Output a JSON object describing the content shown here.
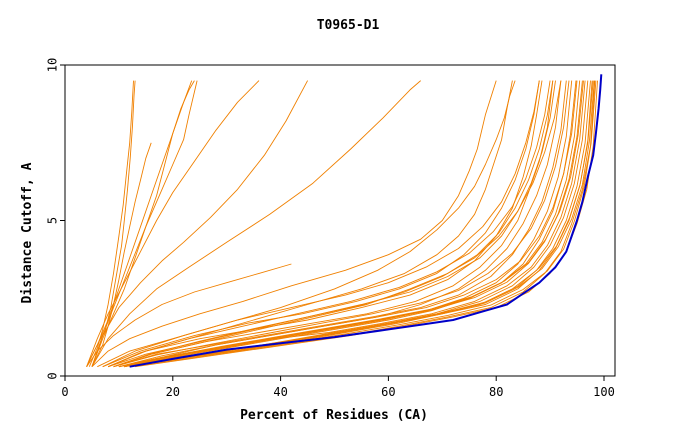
{
  "chart_data": {
    "type": "line",
    "title": "T0965-D1",
    "xlabel": "Percent of Residues (CA)",
    "ylabel": "Distance Cutoff, A",
    "xlim": [
      0,
      100
    ],
    "ylim": [
      0,
      10
    ],
    "xticks": [
      "0",
      "20",
      "40",
      "60",
      "80",
      "100"
    ],
    "yticks": [
      "0",
      "5",
      "10"
    ],
    "grid": false,
    "colors": {
      "models": "#f08000",
      "best": "#0000c8",
      "frame": "#000000"
    },
    "best_curve": {
      "x": [
        12,
        20,
        30,
        40,
        50,
        60,
        66,
        72,
        78,
        82,
        85,
        88,
        91,
        93,
        94,
        95,
        96,
        97,
        98,
        98.5,
        99,
        99.3,
        99.5
      ],
      "y": [
        0.3,
        0.55,
        0.85,
        1.05,
        1.25,
        1.5,
        1.65,
        1.8,
        2.1,
        2.3,
        2.65,
        3.0,
        3.5,
        4.0,
        4.5,
        5.0,
        5.6,
        6.4,
        7.1,
        7.8,
        8.6,
        9.2,
        9.7
      ]
    },
    "series": [
      {
        "x": [
          4,
          6,
          7.5,
          8.5,
          9.5,
          10.5,
          11,
          11.6,
          12.1,
          12.5,
          12.8,
          13
        ],
        "y": [
          0.3,
          1,
          1.5,
          2.2,
          3.2,
          4.2,
          5,
          6,
          7,
          8,
          9,
          9.5
        ]
      },
      {
        "x": [
          4.5,
          6,
          7,
          8,
          9,
          10,
          10.8,
          11.4,
          12,
          12.4,
          12.7
        ],
        "y": [
          0.3,
          0.9,
          1.5,
          2.3,
          3.3,
          4.5,
          5.5,
          6.5,
          7.5,
          8.5,
          9.5
        ]
      },
      {
        "x": [
          5,
          7,
          8,
          9,
          10,
          11,
          12,
          13,
          14,
          15,
          16
        ],
        "y": [
          0.3,
          1,
          1.6,
          2.3,
          3.1,
          4,
          4.8,
          5.6,
          6.3,
          7,
          7.5
        ]
      },
      {
        "x": [
          5,
          7,
          9,
          11,
          13,
          15,
          17,
          18.5,
          20,
          21.5,
          23,
          24
        ],
        "y": [
          0.3,
          1.2,
          2,
          2.8,
          3.8,
          4.8,
          5.8,
          6.8,
          7.8,
          8.6,
          9.2,
          9.5
        ]
      },
      {
        "x": [
          4,
          6,
          8,
          10,
          12,
          14,
          16,
          18,
          20,
          22,
          23.5
        ],
        "y": [
          0.3,
          1,
          1.8,
          2.8,
          3.8,
          4.8,
          5.8,
          6.8,
          7.8,
          8.8,
          9.5
        ]
      },
      {
        "x": [
          5,
          7,
          9,
          12,
          15,
          18,
          20,
          22,
          23,
          24.5
        ],
        "y": [
          0.3,
          1.3,
          2.2,
          3.5,
          4.8,
          6,
          6.8,
          7.6,
          8.4,
          9.5
        ]
      },
      {
        "x": [
          4,
          6,
          8,
          11,
          14,
          17,
          20,
          24,
          28,
          32,
          36
        ],
        "y": [
          0.3,
          1.2,
          2,
          3,
          4,
          5,
          5.9,
          6.9,
          7.9,
          8.8,
          9.5
        ]
      },
      {
        "x": [
          5,
          7,
          10,
          14,
          18,
          22,
          27,
          32,
          37,
          41,
          45
        ],
        "y": [
          0.3,
          1.3,
          2.2,
          3,
          3.7,
          4.3,
          5.1,
          6,
          7.1,
          8.2,
          9.5
        ]
      },
      {
        "x": [
          5,
          8,
          12,
          17,
          23,
          30,
          38,
          46,
          53,
          59,
          64,
          66
        ],
        "y": [
          0.3,
          1.2,
          2,
          2.8,
          3.5,
          4.3,
          5.2,
          6.2,
          7.3,
          8.3,
          9.2,
          9.5
        ]
      },
      {
        "x": [
          4,
          6,
          9,
          13,
          18,
          24,
          30,
          36,
          42
        ],
        "y": [
          0.3,
          0.8,
          1.3,
          1.8,
          2.3,
          2.7,
          3.0,
          3.3,
          3.6
        ]
      },
      {
        "x": [
          5,
          8,
          12,
          18,
          25,
          33,
          42,
          52,
          60,
          66,
          70,
          73,
          75,
          76.5,
          78,
          80
        ],
        "y": [
          0.3,
          0.8,
          1.2,
          1.6,
          2.0,
          2.4,
          2.9,
          3.4,
          3.9,
          4.4,
          5.0,
          5.8,
          6.6,
          7.3,
          8.4,
          9.5
        ]
      },
      {
        "x": [
          8,
          15,
          25,
          35,
          45,
          55,
          63,
          69,
          73,
          76,
          78,
          79.5,
          81,
          82,
          83
        ],
        "y": [
          0.3,
          0.8,
          1.3,
          1.8,
          2.3,
          2.8,
          3.3,
          3.9,
          4.5,
          5.2,
          6,
          6.8,
          7.6,
          8.6,
          9.5
        ]
      },
      {
        "x": [
          6,
          12,
          20,
          30,
          40,
          50,
          58,
          64,
          69,
          73,
          76,
          78,
          80,
          81.5,
          82.5,
          83.5
        ],
        "y": [
          0.3,
          0.8,
          1.2,
          1.7,
          2.2,
          2.8,
          3.4,
          4.0,
          4.7,
          5.4,
          6.1,
          6.8,
          7.6,
          8.3,
          9.0,
          9.5
        ]
      },
      {
        "x": [
          8,
          15,
          25,
          35,
          45,
          55,
          64,
          71,
          76,
          80,
          83,
          85,
          86.5,
          87.5,
          88.5
        ],
        "y": [
          0.3,
          0.8,
          1.2,
          1.5,
          1.8,
          2.2,
          2.6,
          3.1,
          3.7,
          4.5,
          5.4,
          6.4,
          7.4,
          8.4,
          9.5
        ]
      },
      {
        "x": [
          7,
          14,
          24,
          34,
          44,
          54,
          62,
          69,
          74,
          78,
          81,
          83.5,
          85.5,
          87,
          88
        ],
        "y": [
          0.3,
          0.8,
          1.3,
          1.7,
          2.0,
          2.4,
          2.8,
          3.3,
          3.9,
          4.6,
          5.4,
          6.3,
          7.3,
          8.4,
          9.5
        ]
      },
      {
        "x": [
          9,
          16,
          26,
          36,
          46,
          56,
          65,
          72,
          77,
          81,
          84,
          86,
          88,
          89.5,
          90.5
        ],
        "y": [
          0.3,
          0.7,
          1.1,
          1.4,
          1.7,
          2.0,
          2.4,
          2.9,
          3.5,
          4.2,
          5.0,
          5.9,
          6.9,
          8.0,
          9.5
        ]
      },
      {
        "x": [
          10,
          18,
          28,
          38,
          48,
          58,
          66,
          73,
          78,
          82,
          85,
          87.5,
          89.5,
          91,
          92
        ],
        "y": [
          0.3,
          0.6,
          1.0,
          1.3,
          1.6,
          1.9,
          2.3,
          2.8,
          3.4,
          4.1,
          4.9,
          5.8,
          6.8,
          8.0,
          9.5
        ]
      },
      {
        "x": [
          9,
          17,
          27,
          37,
          47,
          57,
          66,
          73,
          79,
          83,
          86,
          88.5,
          90.5,
          92,
          93
        ],
        "y": [
          0.3,
          0.7,
          1.0,
          1.3,
          1.6,
          1.9,
          2.2,
          2.6,
          3.2,
          3.9,
          4.7,
          5.6,
          6.7,
          7.9,
          9.5
        ]
      },
      {
        "x": [
          11,
          19,
          29,
          39,
          49,
          59,
          67,
          74,
          80,
          84,
          87,
          89.5,
          91.5,
          93,
          94
        ],
        "y": [
          0.3,
          0.6,
          0.9,
          1.2,
          1.5,
          1.8,
          2.1,
          2.5,
          3.0,
          3.6,
          4.4,
          5.3,
          6.4,
          7.7,
          9.5
        ]
      },
      {
        "x": [
          10,
          18,
          28,
          38,
          48,
          58,
          67,
          75,
          81,
          85,
          88,
          90.5,
          92.5,
          93.8,
          94.8
        ],
        "y": [
          0.3,
          0.6,
          0.9,
          1.2,
          1.5,
          1.8,
          2.1,
          2.5,
          3.0,
          3.6,
          4.4,
          5.3,
          6.5,
          7.8,
          9.5
        ]
      },
      {
        "x": [
          11,
          20,
          30,
          40,
          50,
          60,
          68,
          75,
          81,
          85.5,
          88.5,
          91,
          93,
          94.5,
          95.5
        ],
        "y": [
          0.3,
          0.6,
          0.9,
          1.2,
          1.5,
          1.8,
          2.1,
          2.5,
          3.0,
          3.6,
          4.3,
          5.2,
          6.3,
          7.7,
          9.5
        ]
      },
      {
        "x": [
          10,
          19,
          29,
          39,
          49,
          59,
          68,
          76,
          82,
          86.5,
          89.5,
          92,
          94,
          95.5,
          96.5
        ],
        "y": [
          0.3,
          0.6,
          0.9,
          1.2,
          1.4,
          1.7,
          2.0,
          2.4,
          2.9,
          3.5,
          4.2,
          5.1,
          6.2,
          7.6,
          9.5
        ]
      },
      {
        "x": [
          12,
          21,
          31,
          41,
          51,
          61,
          69,
          77,
          83,
          87,
          90,
          92.5,
          94.5,
          96,
          97
        ],
        "y": [
          0.3,
          0.6,
          0.8,
          1.1,
          1.4,
          1.7,
          2.0,
          2.4,
          2.9,
          3.5,
          4.2,
          5.1,
          6.2,
          7.6,
          9.5
        ]
      },
      {
        "x": [
          11,
          20,
          30,
          40,
          50,
          60,
          69,
          77,
          83,
          87.5,
          90.5,
          93,
          95,
          96.5,
          97.5
        ],
        "y": [
          0.3,
          0.6,
          0.8,
          1.1,
          1.4,
          1.7,
          2.0,
          2.3,
          2.8,
          3.4,
          4.1,
          5.0,
          6.1,
          7.5,
          9.5
        ]
      },
      {
        "x": [
          12,
          22,
          32,
          42,
          52,
          62,
          70,
          78,
          84,
          88,
          91,
          93.5,
          95.5,
          97,
          98
        ],
        "y": [
          0.3,
          0.6,
          0.8,
          1.1,
          1.4,
          1.7,
          2.0,
          2.3,
          2.8,
          3.4,
          4.1,
          5.0,
          6.1,
          7.5,
          9.5
        ]
      },
      {
        "x": [
          12,
          22,
          32,
          42,
          52,
          62,
          71,
          79,
          85,
          89,
          92,
          94,
          96,
          97.5,
          98.3
        ],
        "y": [
          0.3,
          0.55,
          0.8,
          1.05,
          1.3,
          1.6,
          1.9,
          2.2,
          2.7,
          3.3,
          4.0,
          4.9,
          6.0,
          7.4,
          9.5
        ]
      },
      {
        "x": [
          8,
          15,
          25,
          35,
          45,
          55,
          64,
          71,
          77,
          81,
          84,
          86.5,
          88.5,
          90,
          91
        ],
        "y": [
          0.3,
          0.7,
          1.1,
          1.5,
          1.9,
          2.3,
          2.7,
          3.2,
          3.8,
          4.5,
          5.3,
          6.2,
          7.2,
          8.3,
          9.5
        ]
      },
      {
        "x": [
          9,
          16,
          26,
          36,
          46,
          56,
          64,
          71,
          76.5,
          80.5,
          83.5,
          86,
          88,
          89.5,
          90.5
        ],
        "y": [
          0.3,
          0.7,
          1.1,
          1.5,
          1.9,
          2.3,
          2.8,
          3.3,
          3.9,
          4.6,
          5.4,
          6.3,
          7.3,
          8.4,
          9.5
        ]
      },
      {
        "x": [
          7,
          13,
          22,
          32,
          42,
          52,
          60,
          67,
          73,
          77.5,
          81,
          83.5,
          85.5,
          87,
          88
        ],
        "y": [
          0.3,
          0.8,
          1.3,
          1.8,
          2.2,
          2.6,
          3.0,
          3.5,
          4.1,
          4.8,
          5.6,
          6.5,
          7.5,
          8.5,
          9.5
        ]
      },
      {
        "x": [
          13,
          23,
          33,
          43,
          53,
          63,
          72,
          80,
          86,
          90,
          93,
          95,
          96.8,
          98,
          98.8
        ],
        "y": [
          0.3,
          0.55,
          0.8,
          1.05,
          1.3,
          1.6,
          1.9,
          2.2,
          2.7,
          3.3,
          4.0,
          4.9,
          6.0,
          7.4,
          9.5
        ]
      },
      {
        "x": [
          12,
          21,
          31,
          41,
          51,
          61,
          70,
          78,
          84,
          88.5,
          91.5,
          94,
          96,
          97.3,
          98.2
        ],
        "y": [
          0.3,
          0.6,
          0.85,
          1.1,
          1.4,
          1.7,
          2.0,
          2.35,
          2.85,
          3.45,
          4.15,
          5.05,
          6.15,
          7.55,
          9.5
        ]
      },
      {
        "x": [
          10,
          18,
          28,
          38,
          48,
          58,
          67,
          74,
          80,
          84.5,
          88,
          90.5,
          92.5,
          94,
          95
        ],
        "y": [
          0.3,
          0.65,
          1.0,
          1.3,
          1.6,
          1.9,
          2.2,
          2.6,
          3.1,
          3.7,
          4.5,
          5.4,
          6.5,
          7.8,
          9.5
        ]
      },
      {
        "x": [
          11,
          19,
          29,
          39,
          49,
          59,
          68,
          76,
          82,
          86,
          89,
          91.5,
          93.5,
          95,
          96
        ],
        "y": [
          0.3,
          0.62,
          0.92,
          1.22,
          1.52,
          1.82,
          2.12,
          2.52,
          3.02,
          3.62,
          4.32,
          5.22,
          6.32,
          7.7,
          9.5
        ]
      },
      {
        "x": [
          9,
          17,
          27,
          37,
          47,
          57,
          66,
          73,
          78.5,
          83,
          86.5,
          89,
          91,
          92.5,
          93.5
        ],
        "y": [
          0.3,
          0.68,
          1.02,
          1.35,
          1.68,
          2.0,
          2.35,
          2.75,
          3.3,
          3.95,
          4.75,
          5.65,
          6.75,
          8.0,
          9.5
        ]
      },
      {
        "x": [
          12,
          22,
          32,
          42,
          52,
          62,
          71,
          79,
          85,
          89.5,
          92.5,
          94.5,
          96.3,
          97.6,
          98.5
        ],
        "y": [
          0.3,
          0.58,
          0.82,
          1.08,
          1.35,
          1.65,
          1.95,
          2.28,
          2.78,
          3.38,
          4.08,
          4.98,
          6.08,
          7.48,
          9.5
        ]
      },
      {
        "x": [
          8,
          14,
          23,
          33,
          43,
          53,
          62,
          69,
          75,
          79.5,
          83,
          85.5,
          87.5,
          89,
          90
        ],
        "y": [
          0.3,
          0.75,
          1.2,
          1.6,
          2.0,
          2.4,
          2.85,
          3.35,
          3.95,
          4.65,
          5.45,
          6.35,
          7.35,
          8.4,
          9.5
        ]
      },
      {
        "x": [
          10,
          19,
          29,
          39,
          49,
          59,
          68,
          75.5,
          81.5,
          86,
          89.2,
          91.8,
          93.8,
          95.2,
          96.2
        ],
        "y": [
          0.3,
          0.62,
          0.95,
          1.25,
          1.55,
          1.85,
          2.15,
          2.55,
          3.05,
          3.65,
          4.4,
          5.3,
          6.4,
          7.75,
          9.5
        ]
      },
      {
        "x": [
          11,
          21,
          31,
          41,
          51,
          61,
          70,
          78,
          84,
          88,
          91.2,
          93.6,
          95.6,
          97,
          97.8
        ],
        "y": [
          0.3,
          0.6,
          0.85,
          1.12,
          1.42,
          1.72,
          2.02,
          2.38,
          2.88,
          3.48,
          4.18,
          5.08,
          6.18,
          7.58,
          9.5
        ]
      },
      {
        "x": [
          9,
          16,
          25,
          35,
          45,
          55,
          63,
          70,
          76,
          80.5,
          84,
          86.8,
          89,
          90.8,
          92
        ],
        "y": [
          0.3,
          0.72,
          1.12,
          1.52,
          1.9,
          2.28,
          2.7,
          3.2,
          3.8,
          4.5,
          5.3,
          6.2,
          7.2,
          8.3,
          9.5
        ]
      }
    ]
  }
}
